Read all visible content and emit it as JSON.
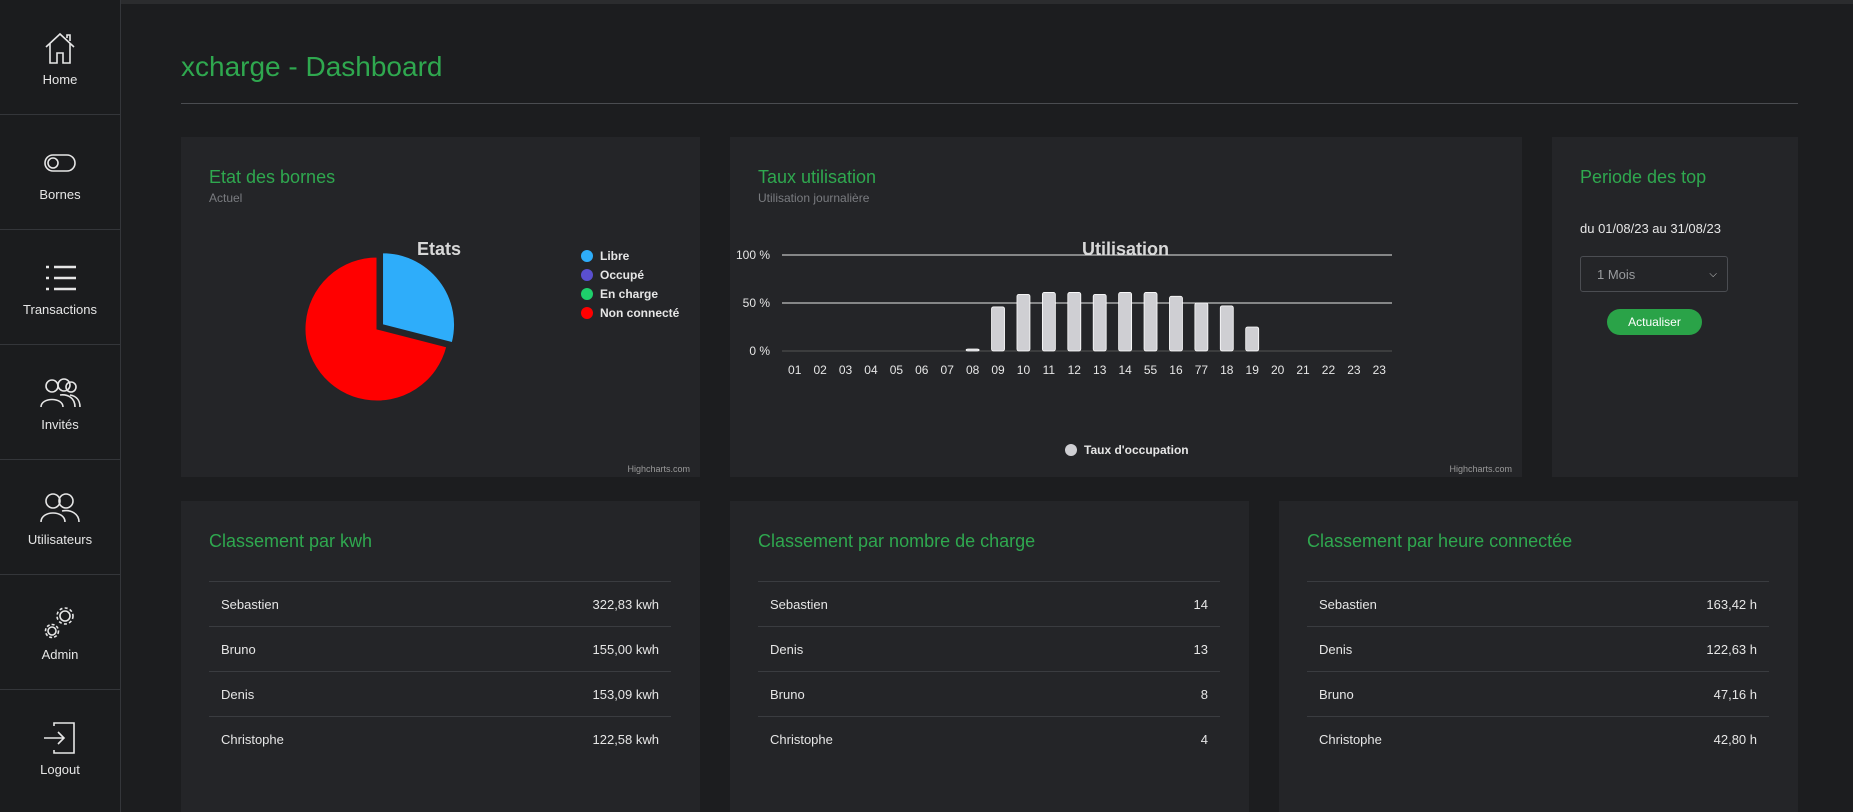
{
  "app": {
    "title": "xcharge - Dashboard"
  },
  "sidebar": {
    "items": [
      {
        "label": "Home",
        "icon": "home-icon"
      },
      {
        "label": "Bornes",
        "icon": "toggle-icon"
      },
      {
        "label": "Transactions",
        "icon": "list-icon"
      },
      {
        "label": "Invités",
        "icon": "group-icon"
      },
      {
        "label": "Utilisateurs",
        "icon": "users-icon"
      },
      {
        "label": "Admin",
        "icon": "gears-icon"
      },
      {
        "label": "Logout",
        "icon": "logout-icon"
      }
    ]
  },
  "colors": {
    "accent": "#2fa84f",
    "libre": "#2eadfa",
    "occupe": "#5a4fcf",
    "en_charge": "#1ecf6b",
    "non_connecte": "#ff0000",
    "bars": "#cfcfd3"
  },
  "etat_card": {
    "title": "Etat des bornes",
    "subtitle": "Actuel",
    "credit": "Highcharts.com"
  },
  "usage_card": {
    "title": "Taux utilisation",
    "subtitle": "Utilisation journalière",
    "credit": "Highcharts.com"
  },
  "period_card": {
    "title": "Periode des top",
    "range_text": "du 01/08/23 au 31/08/23",
    "select_value": "1 Mois",
    "button_label": "Actualiser"
  },
  "ranking_kwh": {
    "title": "Classement par kwh",
    "rows": [
      {
        "name": "Sebastien",
        "value": "322,83 kwh"
      },
      {
        "name": "Bruno",
        "value": "155,00 kwh"
      },
      {
        "name": "Denis",
        "value": "153,09 kwh"
      },
      {
        "name": "Christophe",
        "value": "122,58 kwh"
      }
    ]
  },
  "ranking_count": {
    "title": "Classement par nombre de charge",
    "rows": [
      {
        "name": "Sebastien",
        "value": "14"
      },
      {
        "name": "Denis",
        "value": "13"
      },
      {
        "name": "Bruno",
        "value": "8"
      },
      {
        "name": "Christophe",
        "value": "4"
      }
    ]
  },
  "ranking_hours": {
    "title": "Classement par heure connectée",
    "rows": [
      {
        "name": "Sebastien",
        "value": "163,42 h"
      },
      {
        "name": "Denis",
        "value": "122,63 h"
      },
      {
        "name": "Bruno",
        "value": "47,16 h"
      },
      {
        "name": "Christophe",
        "value": "42,80 h"
      }
    ]
  },
  "chart_data": [
    {
      "type": "pie",
      "title": "Etats",
      "categories": [
        "Libre",
        "Occupé",
        "En charge",
        "Non connecté"
      ],
      "values": [
        29,
        0,
        0,
        71
      ],
      "legend": "right",
      "colors": [
        "#2eadfa",
        "#5a4fcf",
        "#1ecf6b",
        "#ff0000"
      ]
    },
    {
      "type": "bar",
      "title": "Utilisation",
      "categories": [
        "01",
        "02",
        "03",
        "04",
        "05",
        "06",
        "07",
        "08",
        "09",
        "10",
        "11",
        "12",
        "13",
        "14",
        "55",
        "16",
        "77",
        "18",
        "19",
        "20",
        "21",
        "22",
        "23",
        "23"
      ],
      "series": [
        {
          "name": "Taux d'occupation",
          "values": [
            0,
            0,
            0,
            0,
            0,
            0,
            0,
            2,
            46,
            59,
            61,
            61,
            59,
            61,
            61,
            57,
            50,
            47,
            25,
            0,
            0,
            0,
            0,
            0
          ]
        }
      ],
      "ylim": [
        0,
        100
      ],
      "yticks": [
        "0 %",
        "50 %",
        "100 %"
      ],
      "grid": true,
      "legend": "bottom"
    }
  ]
}
